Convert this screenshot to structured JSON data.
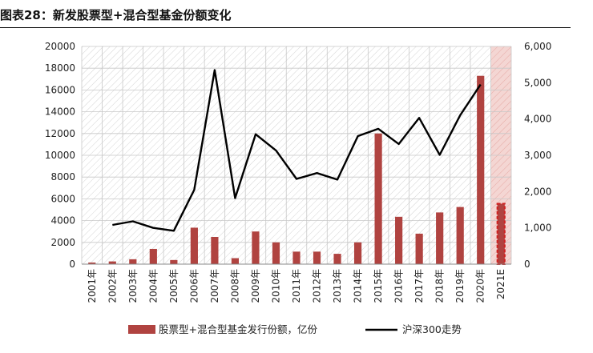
{
  "figure": {
    "title": "图表28：新发股票型+混合型基金份额变化"
  },
  "chart_data": {
    "type": "bar+line",
    "categories": [
      "2001年",
      "2002年",
      "2003年",
      "2004年",
      "2005年",
      "2006年",
      "2007年",
      "2008年",
      "2009年",
      "2010年",
      "2011年",
      "2012年",
      "2013年",
      "2014年",
      "2015年",
      "2016年",
      "2017年",
      "2018年",
      "2019年",
      "2020年",
      "2021E"
    ],
    "series": [
      {
        "name": "股票型+混合型基金发行份额，亿份",
        "type": "bar",
        "axis": "left",
        "color": "#b04340",
        "values": [
          150,
          250,
          450,
          1400,
          380,
          3350,
          2500,
          550,
          3000,
          2000,
          1150,
          1150,
          950,
          2000,
          12000,
          4350,
          2800,
          4750,
          5250,
          17300,
          5550
        ],
        "estimated_last": true
      },
      {
        "name": "沪深300走势",
        "type": "line",
        "axis": "right",
        "color": "#000000",
        "values": [
          null,
          1080,
          1180,
          1000,
          920,
          2050,
          5350,
          1820,
          3580,
          3130,
          2350,
          2510,
          2330,
          3530,
          3730,
          3310,
          4030,
          3010,
          4100,
          4950,
          null
        ]
      }
    ],
    "y_left": {
      "min": 0,
      "max": 20000,
      "ticks": [
        "0",
        "2000",
        "4000",
        "6000",
        "8000",
        "10000",
        "12000",
        "14000",
        "16000",
        "18000",
        "20000"
      ]
    },
    "y_right": {
      "min": 0,
      "max": 6000,
      "ticks": [
        "0",
        "1,000",
        "2,000",
        "3,000",
        "4,000",
        "5,000",
        "6,000"
      ]
    },
    "colors": {
      "grid_hatch": "#cfcfcf",
      "highlight_bg": "#f4d6d3",
      "estimate_border": "#d02020"
    },
    "legend_position": "bottom"
  }
}
